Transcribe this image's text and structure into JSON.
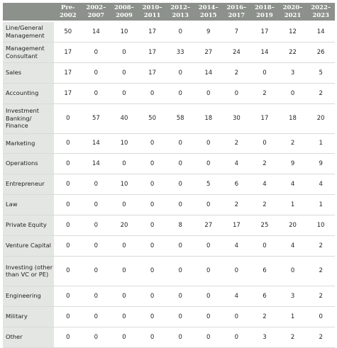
{
  "columns": [
    "Pre-\n2002",
    "2002–\n2007",
    "2008–\n2009",
    "2010–\n2011",
    "2012–\n2013",
    "2014–\n2015",
    "2016–\n2017",
    "2018–\n2019",
    "2020–\n2021",
    "2022–\n2023"
  ],
  "rows": [
    {
      "label": "Line/General Management",
      "values": [
        "50",
        "14",
        "10",
        "17",
        "0",
        "9",
        "7",
        "17",
        "12",
        "14"
      ]
    },
    {
      "label": "Management Consultant",
      "values": [
        "17",
        "0",
        "0",
        "17",
        "33",
        "27",
        "24",
        "14",
        "22",
        "26"
      ]
    },
    {
      "label": "Sales",
      "values": [
        "17",
        "0",
        "0",
        "17",
        "0",
        "14",
        "2",
        "0",
        "3",
        "5"
      ]
    },
    {
      "label": "Accounting",
      "values": [
        "17",
        "0",
        "0",
        "0",
        "0",
        "0",
        "0",
        "2",
        "0",
        "2"
      ]
    },
    {
      "label": "Investment Banking/ Finance",
      "values": [
        "0",
        "57",
        "40",
        "50",
        "58",
        "18",
        "30",
        "17",
        "18",
        "20"
      ]
    },
    {
      "label": "Marketing",
      "values": [
        "0",
        "14",
        "10",
        "0",
        "0",
        "0",
        "2",
        "0",
        "2",
        "1"
      ]
    },
    {
      "label": "Operations",
      "values": [
        "0",
        "14",
        "0",
        "0",
        "0",
        "0",
        "4",
        "2",
        "9",
        "9"
      ]
    },
    {
      "label": "Entrepreneur",
      "values": [
        "0",
        "0",
        "10",
        "0",
        "0",
        "5",
        "6",
        "4",
        "4",
        "4"
      ]
    },
    {
      "label": "Law",
      "values": [
        "0",
        "0",
        "0",
        "0",
        "0",
        "0",
        "2",
        "2",
        "1",
        "1"
      ]
    },
    {
      "label": "Private Equity",
      "values": [
        "0",
        "0",
        "20",
        "0",
        "8",
        "27",
        "17",
        "25",
        "20",
        "10"
      ]
    },
    {
      "label": "Venture Capital",
      "values": [
        "0",
        "0",
        "0",
        "0",
        "0",
        "0",
        "4",
        "0",
        "4",
        "2"
      ]
    },
    {
      "label": "Investing (other than VC or PE)",
      "values": [
        "0",
        "0",
        "0",
        "0",
        "0",
        "0",
        "0",
        "6",
        "0",
        "2"
      ]
    },
    {
      "label": "Engineering",
      "values": [
        "0",
        "0",
        "0",
        "0",
        "0",
        "0",
        "4",
        "6",
        "3",
        "2"
      ]
    },
    {
      "label": "Military",
      "values": [
        "0",
        "0",
        "0",
        "0",
        "0",
        "0",
        "0",
        "2",
        "1",
        "0"
      ]
    },
    {
      "label": "Other",
      "values": [
        "0",
        "0",
        "0",
        "0",
        "0",
        "0",
        "0",
        "3",
        "2",
        "2"
      ]
    }
  ]
}
